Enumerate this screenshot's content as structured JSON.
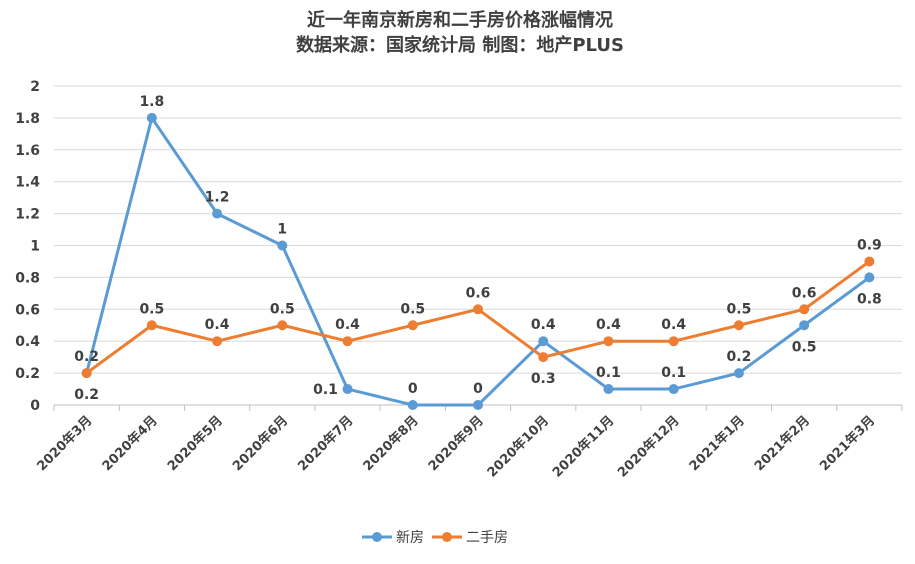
{
  "chart_data": {
    "type": "line",
    "title": "近一年南京新房和二手房价格涨幅情况",
    "subtitle": "数据来源：国家统计局 制图：地产PLUS",
    "xlabel": "",
    "ylabel": "",
    "ylim": [
      0,
      2
    ],
    "yticks": [
      "0",
      "0.2",
      "0.4",
      "0.6",
      "0.8",
      "1",
      "1.2",
      "1.4",
      "1.6",
      "1.8",
      "2"
    ],
    "grid": true,
    "legend_position": "bottom",
    "categories": [
      "2020年3月",
      "2020年4月",
      "2020年5月",
      "2020年6月",
      "2020年7月",
      "2020年8月",
      "2020年9月",
      "2020年10月",
      "2020年11月",
      "2020年12月",
      "2021年1月",
      "2021年2月",
      "2021年3月"
    ],
    "series": [
      {
        "name": "新房",
        "color": "#5b9bd5",
        "values": [
          0.2,
          1.8,
          1.2,
          1,
          0.1,
          0,
          0,
          0.4,
          0.1,
          0.1,
          0.2,
          0.5,
          0.8
        ]
      },
      {
        "name": "二手房",
        "color": "#ed7d31",
        "values": [
          0.2,
          0.5,
          0.4,
          0.5,
          0.4,
          0.5,
          0.6,
          0.3,
          0.4,
          0.4,
          0.5,
          0.6,
          0.9
        ]
      }
    ]
  }
}
